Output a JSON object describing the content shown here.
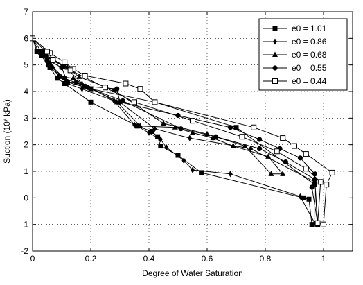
{
  "chart_data": {
    "type": "line",
    "xlabel": "Degree of Water Saturation",
    "ylabel": "Suction (10",
    "ylabel_sup": "y",
    "ylabel_unit": " kPa)",
    "xlim": [
      0,
      1.1
    ],
    "ylim": [
      -2,
      7
    ],
    "x_ticks": [
      0,
      0.2,
      0.4,
      0.6,
      0.8,
      1
    ],
    "x_tick_labels": [
      "0",
      "0.2",
      "0.4",
      "0.6",
      "0.8",
      "1"
    ],
    "y_ticks": [
      -2,
      -1,
      0,
      1,
      2,
      3,
      4,
      5,
      6,
      7
    ],
    "y_tick_labels": [
      "-2",
      "-1",
      "0",
      "1",
      "2",
      "3",
      "4",
      "5",
      "6",
      "7"
    ],
    "grid": true,
    "legend_position": "top-right",
    "series": [
      {
        "name": "e0 = 1.01",
        "marker": "square-filled",
        "points": [
          [
            0,
            6.0
          ],
          [
            0.015,
            5.5
          ],
          [
            0.03,
            5.5
          ],
          [
            0.04,
            5.4
          ],
          [
            0.05,
            5.2
          ],
          [
            0.055,
            5.0
          ],
          [
            0.06,
            4.9
          ],
          [
            0.085,
            4.5
          ],
          [
            0.11,
            4.3
          ],
          [
            0.2,
            3.6
          ],
          [
            0.36,
            2.7
          ],
          [
            0.41,
            2.5
          ],
          [
            0.43,
            2.3
          ],
          [
            0.44,
            1.95
          ],
          [
            0.5,
            1.6
          ],
          [
            0.58,
            0.95
          ],
          [
            0.93,
            0.0
          ],
          [
            0.95,
            -0.05
          ],
          [
            0.96,
            -1.0
          ],
          [
            0.98,
            -1.0
          ],
          [
            0.97,
            0.5
          ],
          [
            0.7,
            2.65
          ],
          [
            0.42,
            3.6
          ],
          [
            0.2,
            4.1
          ],
          [
            0.12,
            4.35
          ],
          [
            0.06,
            4.9
          ],
          [
            0.03,
            5.35
          ],
          [
            0.015,
            5.5
          ]
        ]
      },
      {
        "name": "e0 = 0.86",
        "marker": "diamond-filled",
        "points": [
          [
            0,
            6.0
          ],
          [
            0.02,
            5.5
          ],
          [
            0.035,
            5.45
          ],
          [
            0.05,
            5.1
          ],
          [
            0.07,
            4.9
          ],
          [
            0.09,
            4.6
          ],
          [
            0.12,
            4.3
          ],
          [
            0.17,
            4.1
          ],
          [
            0.28,
            3.65
          ],
          [
            0.35,
            2.75
          ],
          [
            0.4,
            2.45
          ],
          [
            0.44,
            2.2
          ],
          [
            0.46,
            1.9
          ],
          [
            0.52,
            1.4
          ],
          [
            0.55,
            1.05
          ],
          [
            0.68,
            0.9
          ],
          [
            0.92,
            0.05
          ],
          [
            0.97,
            -0.95
          ],
          [
            0.97,
            0.6
          ],
          [
            0.75,
            1.85
          ],
          [
            0.54,
            2.25
          ],
          [
            0.42,
            2.6
          ],
          [
            0.3,
            3.6
          ],
          [
            0.18,
            4.2
          ],
          [
            0.11,
            4.95
          ],
          [
            0.05,
            5.35
          ],
          [
            0.02,
            5.5
          ]
        ]
      },
      {
        "name": "e0 = 0.68",
        "marker": "triangle-filled",
        "points": [
          [
            0,
            6.0
          ],
          [
            0.03,
            5.5
          ],
          [
            0.06,
            5.05
          ],
          [
            0.1,
            4.55
          ],
          [
            0.14,
            4.5
          ],
          [
            0.17,
            4.3
          ],
          [
            0.29,
            3.6
          ],
          [
            0.37,
            2.7
          ],
          [
            0.49,
            2.65
          ],
          [
            0.55,
            2.45
          ],
          [
            0.62,
            2.25
          ],
          [
            0.69,
            1.95
          ],
          [
            0.81,
            1.55
          ],
          [
            0.86,
            0.9
          ],
          [
            0.82,
            0.9
          ],
          [
            0.73,
            1.95
          ],
          [
            0.6,
            2.4
          ],
          [
            0.45,
            2.8
          ],
          [
            0.28,
            4.05
          ],
          [
            0.16,
            4.55
          ],
          [
            0.12,
            4.9
          ],
          [
            0.07,
            5.15
          ],
          [
            0.03,
            5.5
          ]
        ]
      },
      {
        "name": "e0 = 0.55",
        "marker": "circle-filled",
        "points": [
          [
            0,
            6.0
          ],
          [
            0.04,
            5.55
          ],
          [
            0.05,
            5.2
          ],
          [
            0.1,
            4.9
          ],
          [
            0.12,
            4.35
          ],
          [
            0.15,
            4.35
          ],
          [
            0.18,
            4.2
          ],
          [
            0.29,
            4.1
          ],
          [
            0.3,
            3.6
          ],
          [
            0.5,
            3.1
          ],
          [
            0.68,
            2.65
          ],
          [
            0.78,
            2.2
          ],
          [
            0.85,
            1.85
          ],
          [
            0.92,
            1.5
          ],
          [
            0.97,
            0.9
          ],
          [
            0.96,
            0.4
          ],
          [
            0.98,
            -0.95
          ],
          [
            0.97,
            0.7
          ],
          [
            0.87,
            1.35
          ],
          [
            0.78,
            1.85
          ],
          [
            0.63,
            2.3
          ],
          [
            0.51,
            2.6
          ],
          [
            0.31,
            3.65
          ],
          [
            0.19,
            4.15
          ],
          [
            0.11,
            4.5
          ],
          [
            0.06,
            5.0
          ],
          [
            0.04,
            5.5
          ]
        ]
      },
      {
        "name": "e0 = 0.44",
        "marker": "square-open",
        "points": [
          [
            0,
            6.0
          ],
          [
            0.06,
            5.45
          ],
          [
            0.11,
            5.1
          ],
          [
            0.14,
            4.85
          ],
          [
            0.18,
            4.6
          ],
          [
            0.32,
            4.3
          ],
          [
            0.37,
            4.1
          ],
          [
            0.42,
            3.6
          ],
          [
            0.76,
            2.65
          ],
          [
            0.86,
            2.25
          ],
          [
            0.9,
            1.95
          ],
          [
            0.94,
            1.65
          ],
          [
            1.03,
            0.95
          ],
          [
            1.01,
            0.5
          ],
          [
            1.0,
            -1.0
          ],
          [
            0.98,
            -0.95
          ],
          [
            0.99,
            0.6
          ],
          [
            0.94,
            1.1
          ],
          [
            0.84,
            1.75
          ],
          [
            0.72,
            2.3
          ],
          [
            0.55,
            2.9
          ],
          [
            0.35,
            3.6
          ],
          [
            0.25,
            4.15
          ],
          [
            0.13,
            4.8
          ],
          [
            0.07,
            5.2
          ],
          [
            0.05,
            5.5
          ]
        ]
      }
    ]
  }
}
